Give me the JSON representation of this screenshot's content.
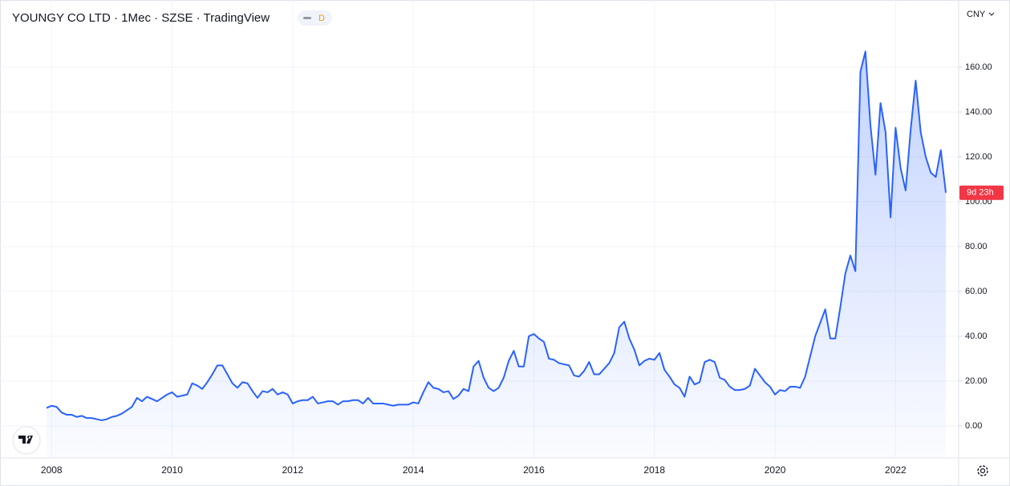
{
  "chart_data": {
    "type": "line",
    "title": "YOUNGY CO LTD · 1Мес · SZSE · TradingView",
    "interval_badge": "D",
    "currency": "CNY",
    "countdown_label": "9d 23h",
    "color": "#2962ff",
    "grid": true,
    "categories": [
      null,
      "2008",
      null,
      null,
      null,
      null,
      null,
      null,
      null,
      null,
      null,
      null,
      null,
      null,
      null,
      null,
      null,
      null,
      null,
      null,
      null,
      null,
      null,
      null,
      null,
      "2010",
      null,
      null,
      null,
      null,
      null,
      null,
      null,
      null,
      null,
      null,
      null,
      null,
      null,
      null,
      null,
      null,
      null,
      null,
      null,
      null,
      null,
      null,
      null,
      "2012",
      null,
      null,
      null,
      null,
      null,
      null,
      null,
      null,
      null,
      null,
      null,
      null,
      null,
      null,
      null,
      null,
      null,
      null,
      null,
      null,
      null,
      null,
      null,
      "2014",
      null,
      null,
      null,
      null,
      null,
      null,
      null,
      null,
      null,
      null,
      null,
      null,
      null,
      null,
      null,
      null,
      null,
      null,
      null,
      null,
      null,
      null,
      null,
      "2016",
      null,
      null,
      null,
      null,
      null,
      null,
      null,
      null,
      null,
      null,
      null,
      null,
      null,
      null,
      null,
      null,
      null,
      null,
      null,
      null,
      null,
      null,
      null,
      "2018",
      null,
      null,
      null,
      null,
      null,
      null,
      null,
      null,
      null,
      null,
      null,
      null,
      null,
      null,
      null,
      null,
      null,
      null,
      null,
      null,
      null,
      null,
      null,
      "2020",
      null,
      null,
      null,
      null,
      null,
      null,
      null,
      null,
      null,
      null,
      null,
      null,
      null,
      null,
      null,
      null,
      null,
      null,
      null,
      null,
      null,
      null,
      null,
      "2022",
      null,
      null,
      null,
      null,
      null,
      null,
      null,
      null,
      null,
      null
    ],
    "values": [
      8,
      9,
      8.5,
      6,
      5,
      5,
      4,
      4.5,
      3.5,
      3.5,
      3,
      2.5,
      3,
      4,
      4.5,
      5.5,
      7,
      8.5,
      12.5,
      11,
      13,
      12,
      11,
      12.5,
      14,
      15,
      13,
      13.5,
      14,
      19,
      18,
      16.5,
      19.5,
      23,
      27,
      27,
      23,
      19,
      17,
      19.5,
      19,
      15.5,
      12.5,
      15.5,
      15,
      16.5,
      14,
      15,
      14,
      10,
      11,
      11.5,
      11.5,
      13,
      10,
      10.5,
      11,
      11,
      9.5,
      11,
      11,
      11.5,
      11.5,
      10,
      12.5,
      10,
      10,
      10,
      9.5,
      9,
      9.5,
      9.5,
      9.5,
      10.5,
      10,
      15,
      19.5,
      17,
      16.5,
      15,
      15.5,
      12,
      13.5,
      16.5,
      15.5,
      26.5,
      29,
      21.5,
      17,
      15.5,
      17,
      21.5,
      29,
      33.5,
      26.5,
      26.5,
      40,
      41,
      39,
      37.5,
      30,
      29.5,
      28,
      27.5,
      27,
      22.5,
      22,
      24.5,
      28.5,
      23,
      23,
      25.5,
      28,
      32.5,
      44,
      46.5,
      39,
      34,
      27,
      29,
      30,
      29.5,
      32.5,
      25,
      22,
      18.5,
      17,
      13,
      22,
      18.5,
      19.5,
      28.5,
      29.5,
      28.5,
      21.5,
      20.5,
      17.5,
      16,
      16,
      16.5,
      18,
      25.5,
      22.5,
      19.5,
      17.5,
      14,
      16,
      15.5,
      17.5,
      17.5,
      17,
      22,
      31,
      40,
      46,
      52,
      39,
      39,
      53,
      68,
      76,
      69,
      158,
      167,
      134,
      112,
      144,
      131,
      93,
      133,
      115,
      105,
      132,
      154,
      131,
      120,
      113,
      111,
      123,
      104
    ],
    "ylim": [
      -14.3,
      187.1
    ],
    "yticks": [
      {
        "value": 0,
        "label": "0.00"
      },
      {
        "value": 20,
        "label": "20.00"
      },
      {
        "value": 40,
        "label": "40.00"
      },
      {
        "value": 60,
        "label": "60.00"
      },
      {
        "value": 80,
        "label": "80.00"
      },
      {
        "value": 100,
        "label": "100.00"
      },
      {
        "value": 120,
        "label": "120.00"
      },
      {
        "value": 140,
        "label": "140.00"
      },
      {
        "value": 160,
        "label": "160.00"
      }
    ]
  }
}
